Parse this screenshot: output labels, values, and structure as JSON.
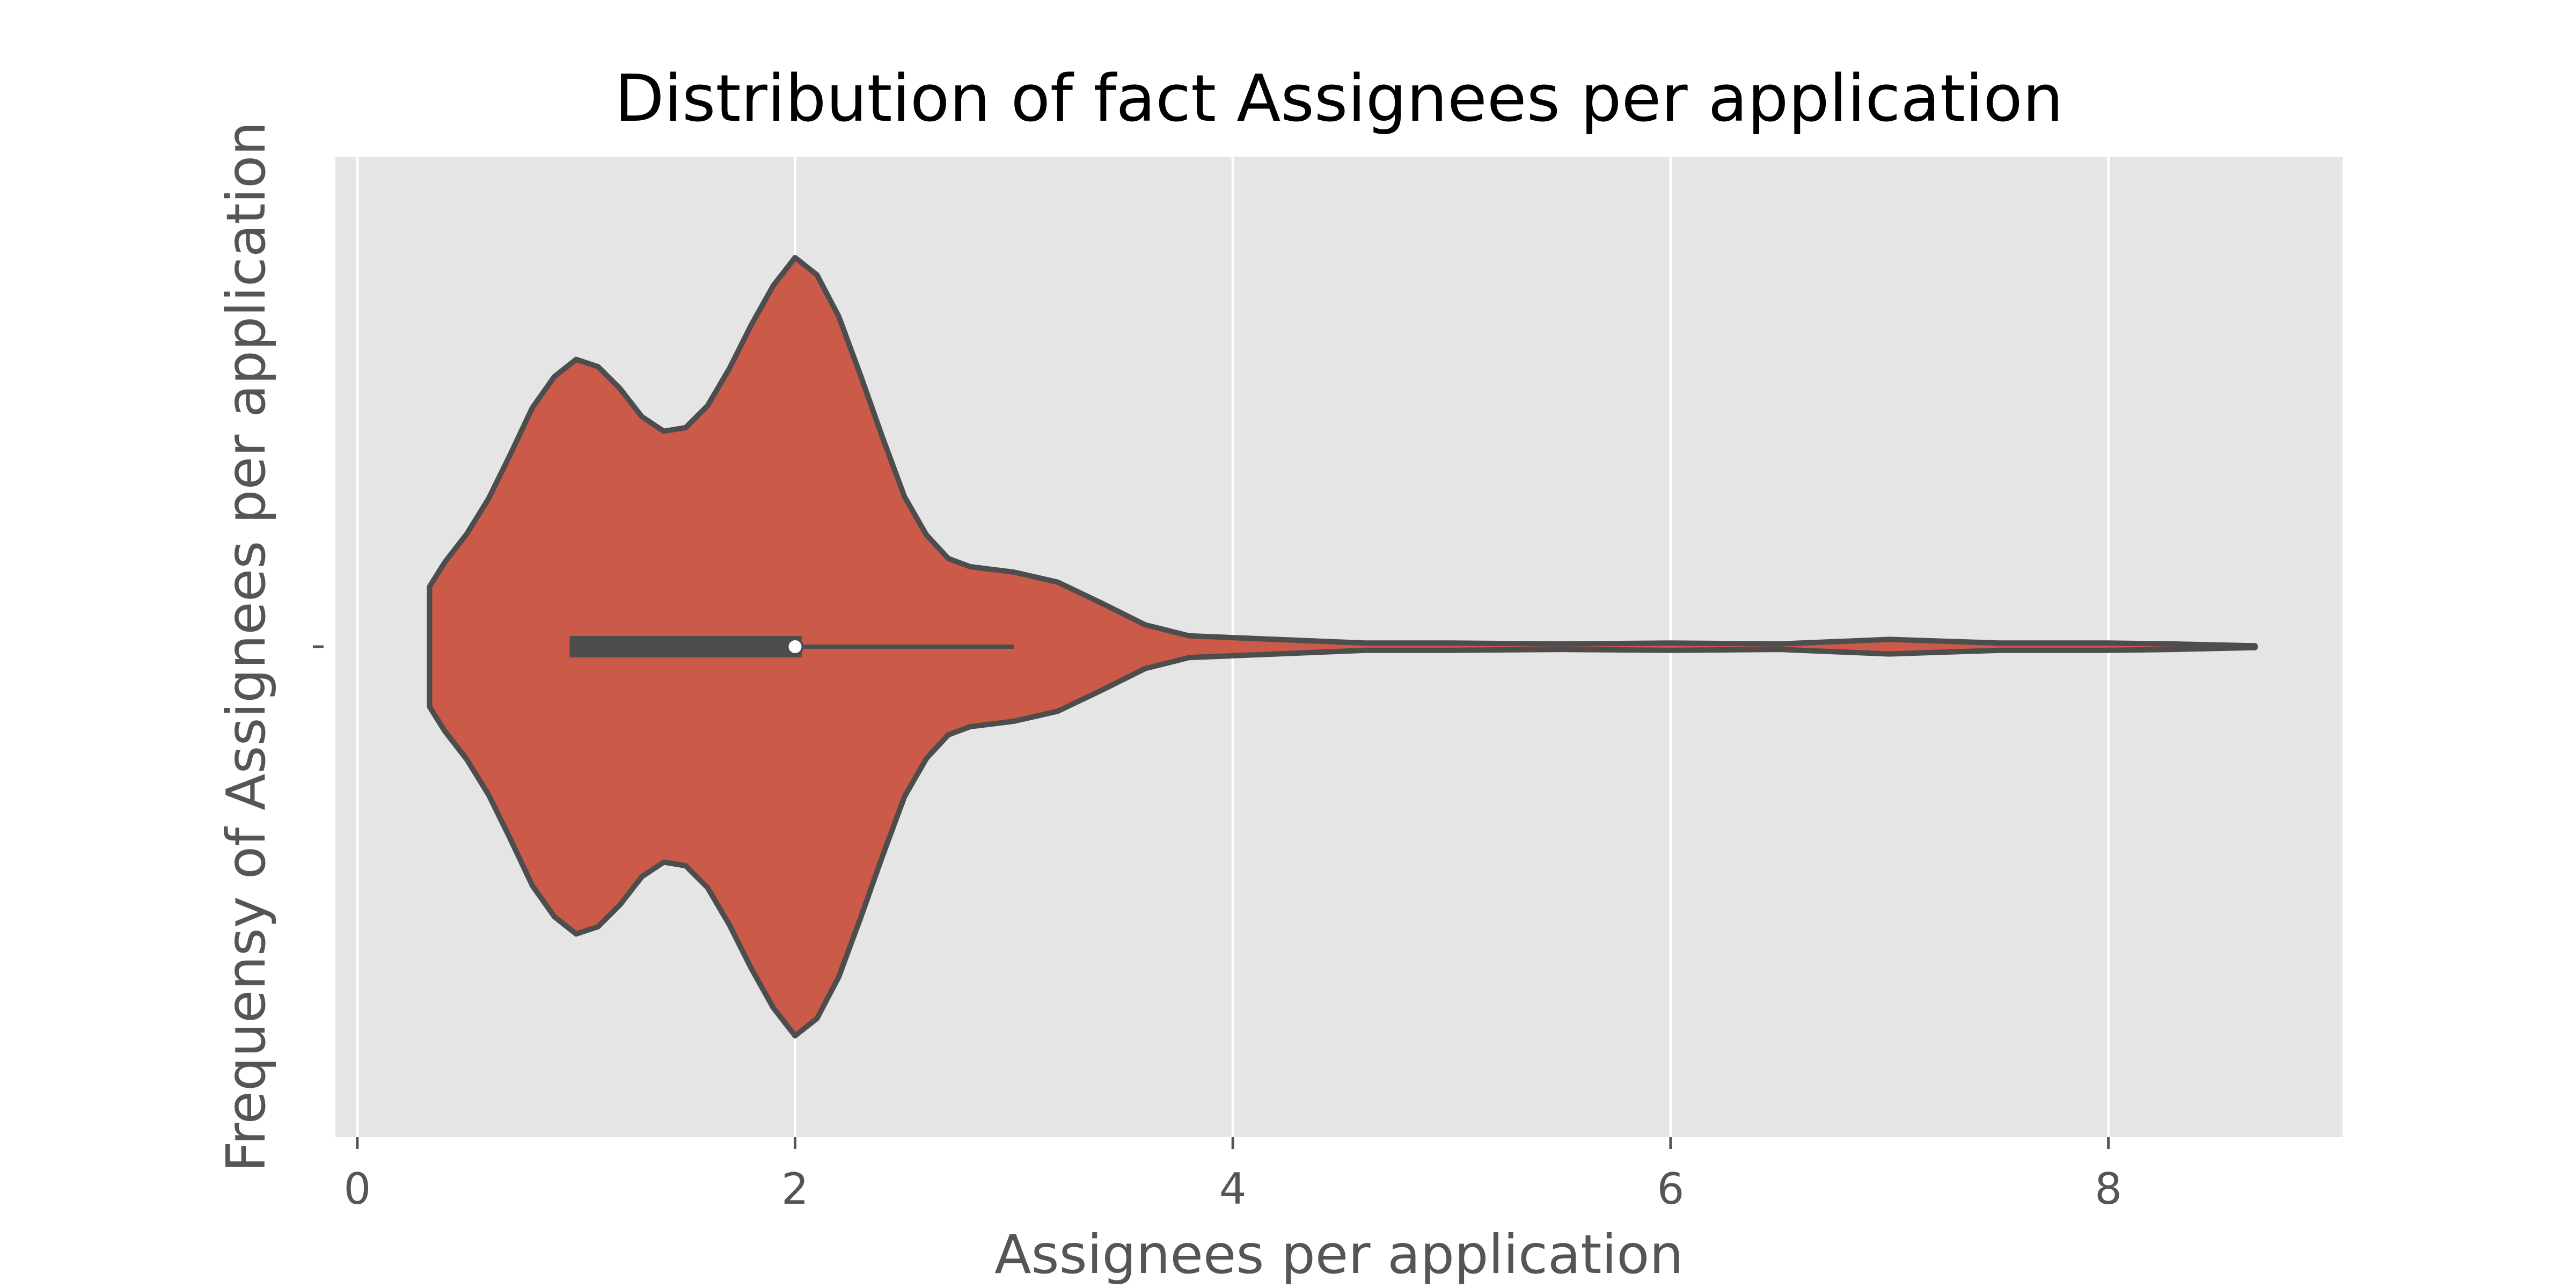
{
  "chart_data": {
    "type": "violin",
    "title": "Distribution of fact Assignees per application",
    "xlabel": "Assignees per application",
    "ylabel": "Frequensy of Assignees per application",
    "xlim": [
      -0.1,
      9.07
    ],
    "xticks": [
      0,
      2,
      4,
      6,
      8
    ],
    "xtick_labels": [
      "0",
      "2",
      "4",
      "6",
      "8"
    ],
    "grid": true,
    "orientation": "horizontal",
    "colors": {
      "body": "#CB5A49",
      "edge": "#4D4D4D",
      "background": "#E5E5E5",
      "grid": "#FFFFFF",
      "median": "#FFFFFF"
    },
    "violin": {
      "min": 0.33,
      "max": 8.67,
      "quartiles": [
        0.97,
        2.03
      ],
      "median": 2.0,
      "whiskers": [
        0.97,
        3.0
      ],
      "density_profile": [
        [
          0.33,
          0.066
        ],
        [
          0.4,
          0.093
        ],
        [
          0.5,
          0.124
        ],
        [
          0.6,
          0.163
        ],
        [
          0.7,
          0.212
        ],
        [
          0.8,
          0.263
        ],
        [
          0.9,
          0.297
        ],
        [
          1.0,
          0.316
        ],
        [
          1.1,
          0.308
        ],
        [
          1.2,
          0.284
        ],
        [
          1.3,
          0.253
        ],
        [
          1.4,
          0.237
        ],
        [
          1.5,
          0.241
        ],
        [
          1.6,
          0.265
        ],
        [
          1.7,
          0.306
        ],
        [
          1.8,
          0.354
        ],
        [
          1.9,
          0.397
        ],
        [
          2.0,
          0.428
        ],
        [
          2.1,
          0.409
        ],
        [
          2.2,
          0.363
        ],
        [
          2.3,
          0.298
        ],
        [
          2.4,
          0.23
        ],
        [
          2.5,
          0.165
        ],
        [
          2.6,
          0.123
        ],
        [
          2.7,
          0.097
        ],
        [
          2.8,
          0.088
        ],
        [
          3.0,
          0.082
        ],
        [
          3.2,
          0.071
        ],
        [
          3.4,
          0.048
        ],
        [
          3.6,
          0.024
        ],
        [
          3.8,
          0.012
        ],
        [
          4.0,
          0.01
        ],
        [
          4.3,
          0.007
        ],
        [
          4.6,
          0.004
        ],
        [
          5.0,
          0.004
        ],
        [
          5.5,
          0.003
        ],
        [
          6.0,
          0.004
        ],
        [
          6.5,
          0.003
        ],
        [
          7.0,
          0.008
        ],
        [
          7.5,
          0.004
        ],
        [
          8.0,
          0.004
        ],
        [
          8.3,
          0.003
        ],
        [
          8.67,
          0.001
        ]
      ]
    }
  }
}
